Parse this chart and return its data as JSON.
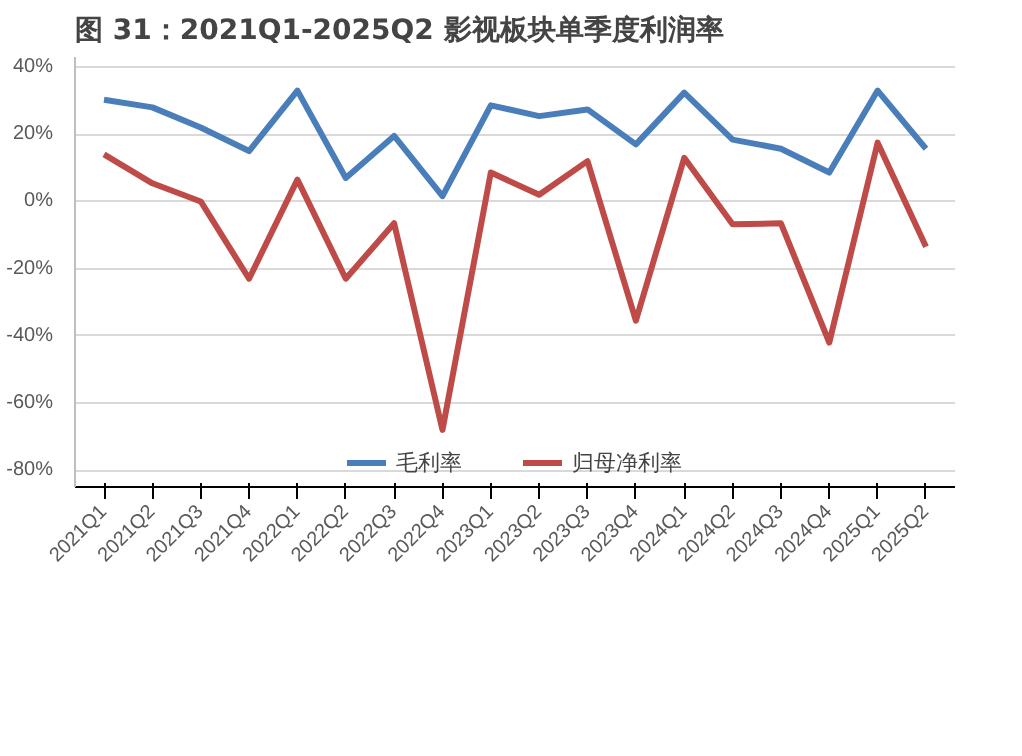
{
  "chart_data": {
    "type": "line",
    "title": "图 31：2021Q1-2025Q2 影视板块单季度利润率",
    "categories": [
      "2021Q1",
      "2021Q2",
      "2021Q3",
      "2021Q4",
      "2022Q1",
      "2022Q2",
      "2022Q3",
      "2022Q4",
      "2023Q1",
      "2023Q2",
      "2023Q3",
      "2023Q4",
      "2024Q1",
      "2024Q2",
      "2024Q3",
      "2024Q4",
      "2025Q1",
      "2025Q2"
    ],
    "series": [
      {
        "name": "毛利率",
        "color": "#4a7ebb",
        "values": [
          30.3,
          28,
          22,
          15,
          33,
          7,
          19.5,
          1.6,
          28.6,
          25.4,
          27.4,
          17,
          32.4,
          18.4,
          15.7,
          8.6,
          33,
          15.7
        ]
      },
      {
        "name": "归母净利率",
        "color": "#be4b48",
        "values": [
          14,
          5.4,
          0,
          -23,
          6.5,
          -23,
          -6.5,
          -68,
          8.6,
          2,
          12,
          -35.5,
          13,
          -6.8,
          -6.5,
          -42,
          17.5,
          -13.5
        ]
      }
    ],
    "ylim": [
      -85,
      43
    ],
    "yticks": [
      {
        "value": -80,
        "label": "-80%"
      },
      {
        "value": -60,
        "label": "-60%"
      },
      {
        "value": -40,
        "label": "-40%"
      },
      {
        "value": -20,
        "label": "-20%"
      },
      {
        "value": 0,
        "label": "0%"
      },
      {
        "value": 20,
        "label": "20%"
      },
      {
        "value": 40,
        "label": "40%"
      }
    ],
    "grid": "y",
    "legend": "bottom",
    "marker": "none",
    "line_style": "solid"
  }
}
